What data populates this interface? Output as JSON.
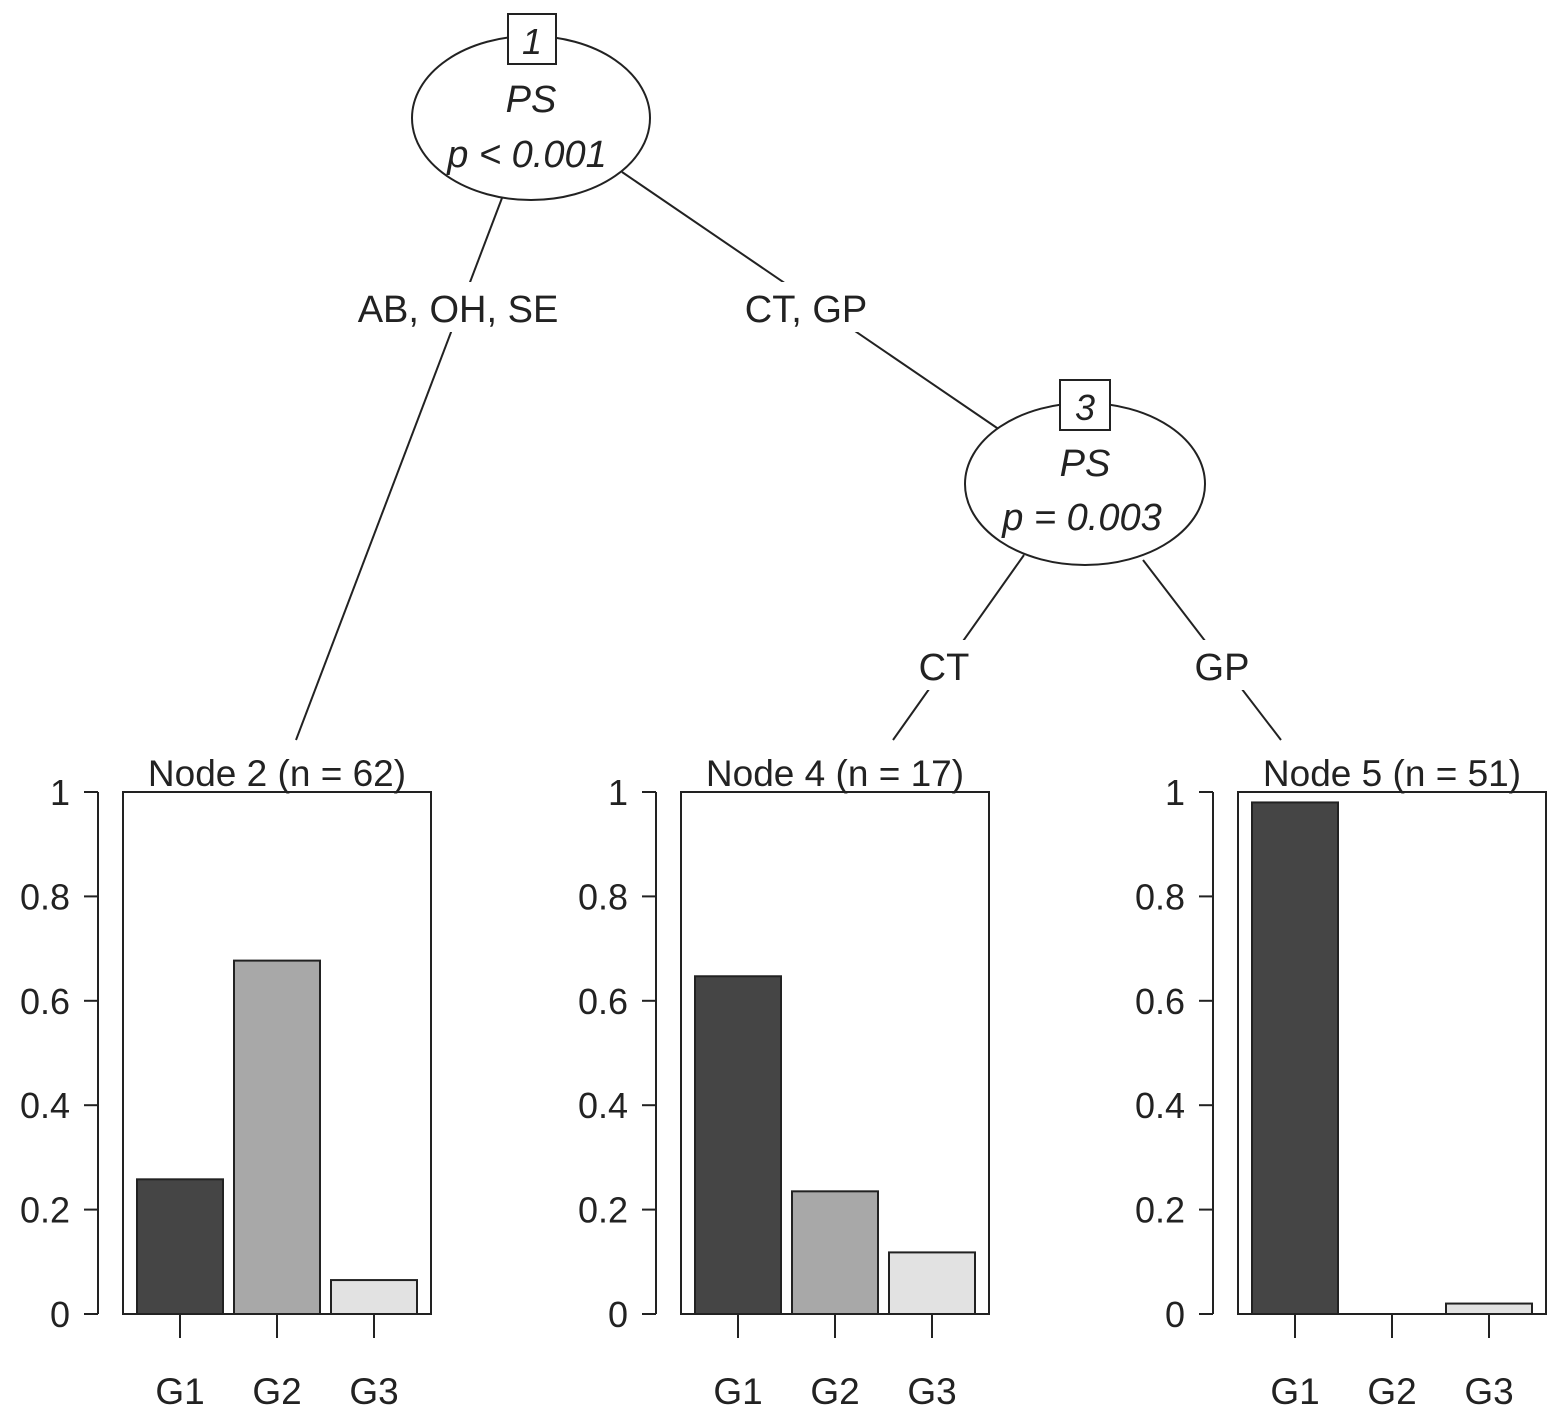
{
  "tree": {
    "inner_nodes": [
      {
        "id": "1",
        "variable": "PS",
        "pvalue": "p < 0.001"
      },
      {
        "id": "3",
        "variable": "PS",
        "pvalue": "p = 0.003"
      }
    ],
    "edge_labels": {
      "node1_left": "AB, OH, SE",
      "node1_right": "CT, GP",
      "node3_left": "CT",
      "node3_right": "GP"
    }
  },
  "chart_data": [
    {
      "type": "bar",
      "title": "Node 2 (n = 62)",
      "categories": [
        "G1",
        "G2",
        "G3"
      ],
      "values": [
        0.258,
        0.677,
        0.065
      ],
      "ylim": [
        0,
        1
      ],
      "yticks": [
        "0",
        "0.2",
        "0.4",
        "0.6",
        "0.8",
        "1"
      ],
      "colors": [
        "#454545",
        "#a8a8a8",
        "#e2e2e2"
      ]
    },
    {
      "type": "bar",
      "title": "Node 4 (n = 17)",
      "categories": [
        "G1",
        "G2",
        "G3"
      ],
      "values": [
        0.647,
        0.235,
        0.118
      ],
      "ylim": [
        0,
        1
      ],
      "yticks": [
        "0",
        "0.2",
        "0.4",
        "0.6",
        "0.8",
        "1"
      ],
      "colors": [
        "#454545",
        "#a8a8a8",
        "#e2e2e2"
      ]
    },
    {
      "type": "bar",
      "title": "Node 5 (n = 51)",
      "categories": [
        "G1",
        "G2",
        "G3"
      ],
      "values": [
        0.98,
        0.0,
        0.02
      ],
      "ylim": [
        0,
        1
      ],
      "yticks": [
        "0",
        "0.2",
        "0.4",
        "0.6",
        "0.8",
        "1"
      ],
      "colors": [
        "#454545",
        "#a8a8a8",
        "#e2e2e2"
      ]
    }
  ]
}
